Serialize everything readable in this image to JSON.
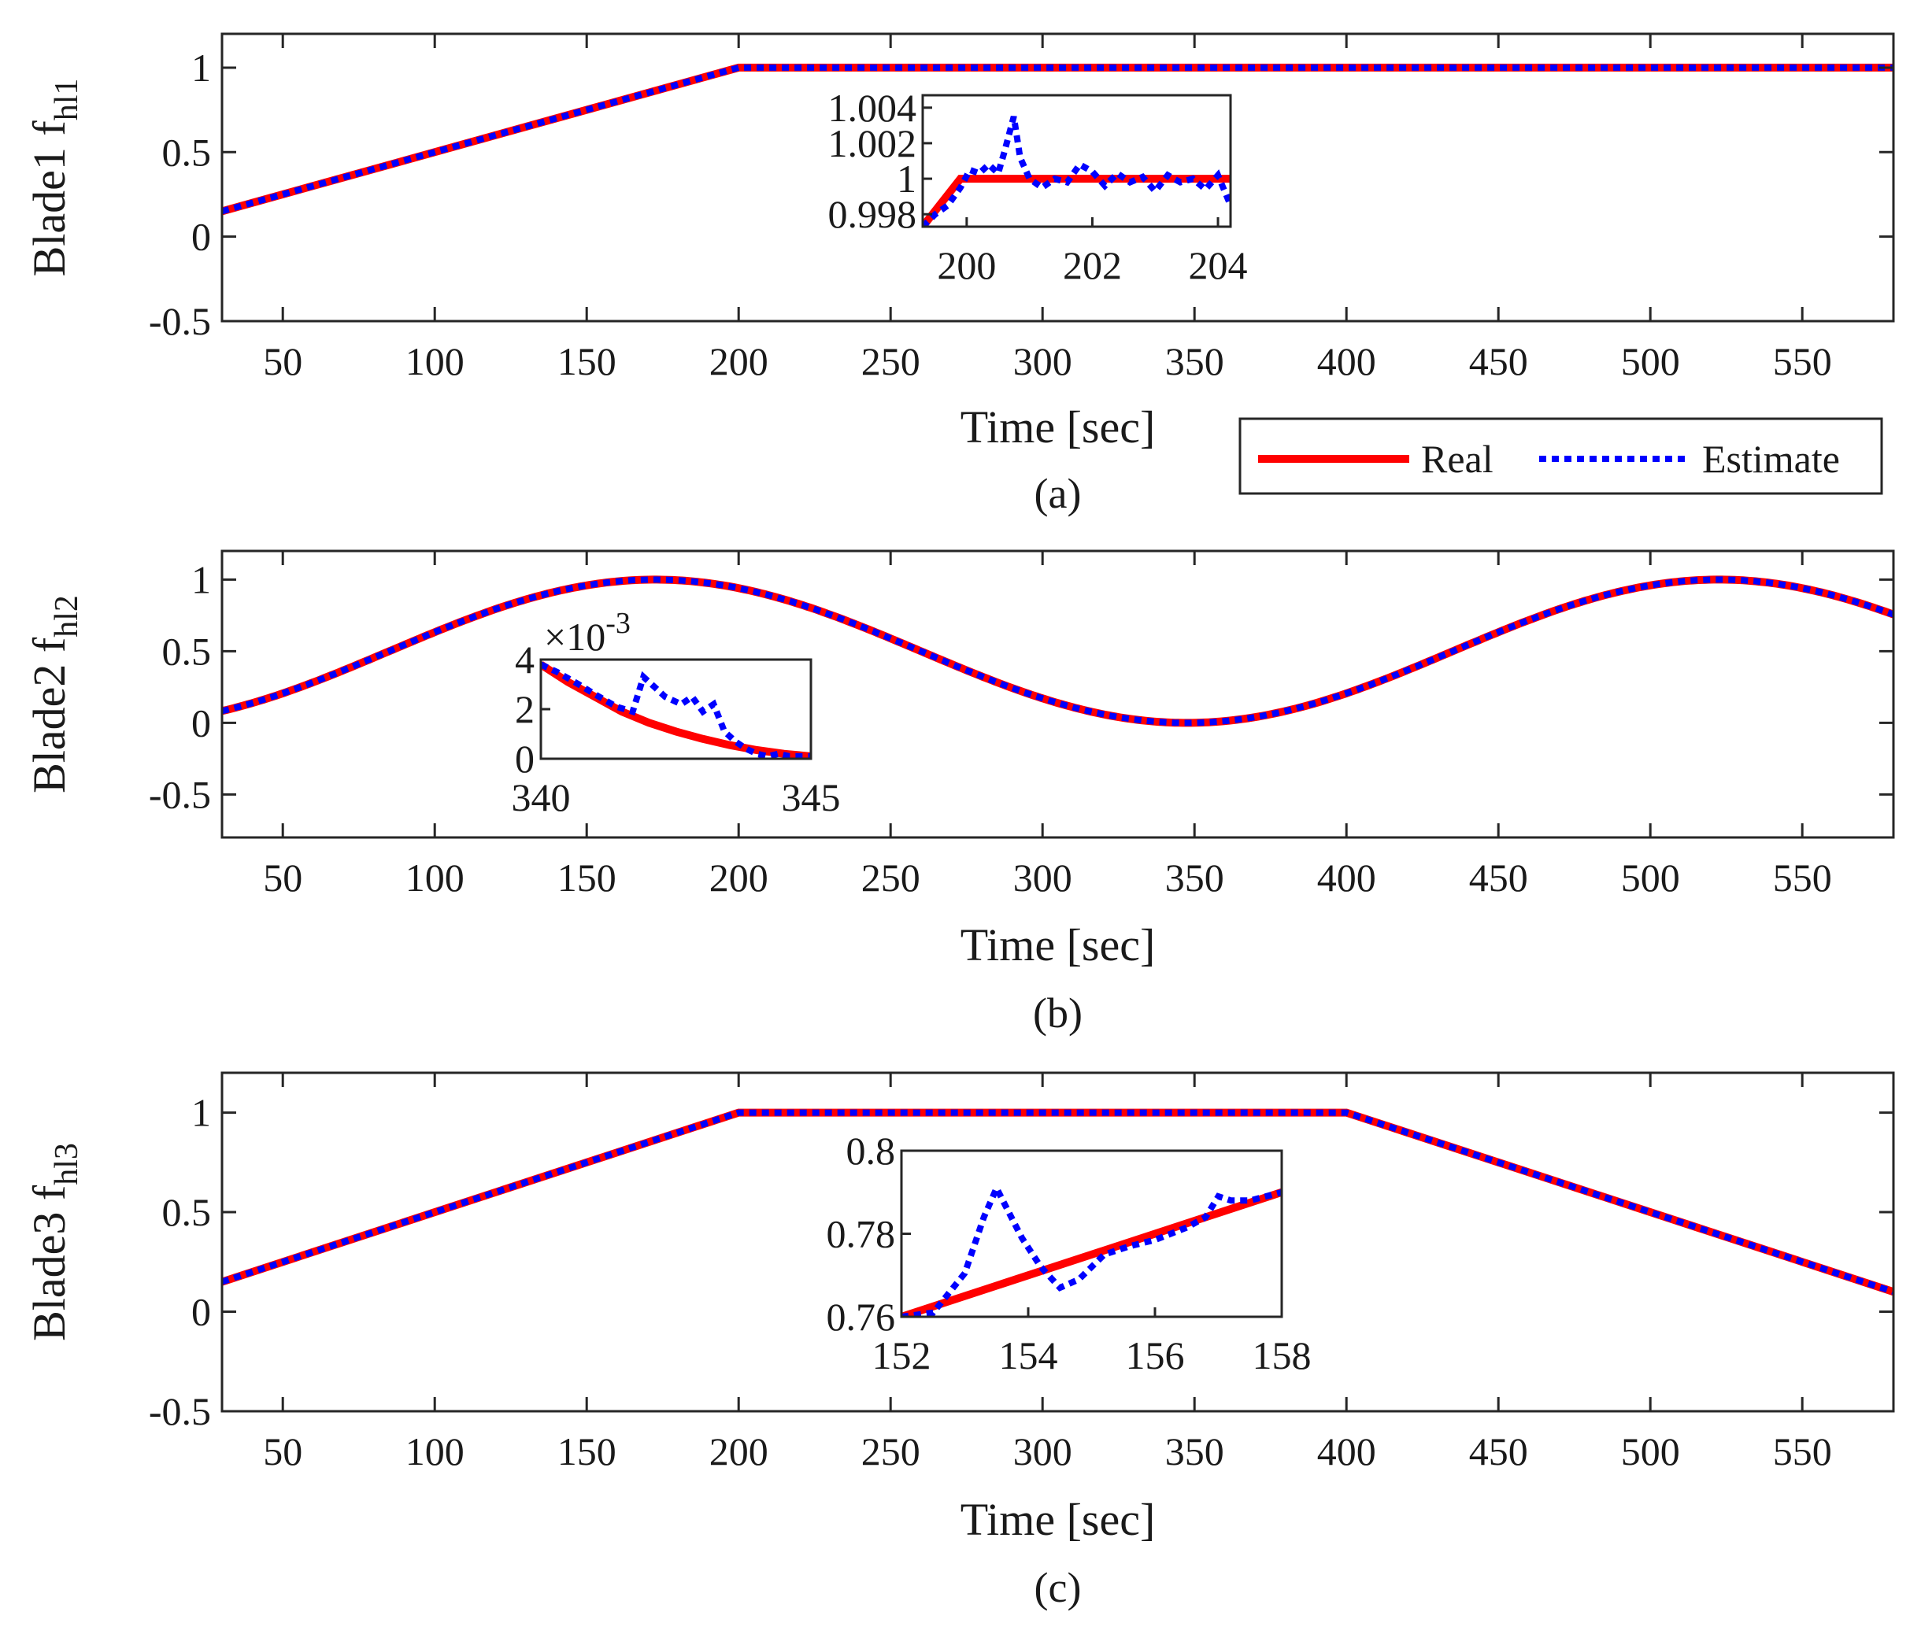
{
  "chart_data": [
    {
      "panel": "(a)",
      "type": "line",
      "ylabel": "Blade1 f",
      "ylabel_sub": "hl1",
      "xlabel": "Time [sec]",
      "caption": "(a)",
      "xlim": [
        30,
        580
      ],
      "ylim": [
        -0.5,
        1.2
      ],
      "xticks": [
        50,
        100,
        150,
        200,
        250,
        300,
        350,
        400,
        450,
        500,
        550
      ],
      "yticks": [
        -0.5,
        0,
        0.5,
        1
      ],
      "ytick_labels": [
        "-0.5",
        "0",
        "0.5",
        "1"
      ],
      "legend": {
        "entries": [
          "Real",
          "Estimate"
        ],
        "placement": "below-right",
        "colors": [
          "#ff0000",
          "#0000ff"
        ]
      },
      "series": [
        {
          "name": "Real",
          "color": "#ff0000",
          "style": "solid",
          "x": [
            30,
            200,
            580
          ],
          "y": [
            0.15,
            1.0,
            1.0
          ]
        },
        {
          "name": "Estimate",
          "color": "#0000ff",
          "style": "dotted",
          "x": [
            30,
            200,
            580
          ],
          "y": [
            0.15,
            1.0,
            1.0
          ]
        }
      ],
      "inset": {
        "xlim": [
          199.3,
          204.2
        ],
        "ylim": [
          0.9973,
          1.0047
        ],
        "xticks": [
          200,
          202,
          204
        ],
        "yticks": [
          0.998,
          1,
          1.002,
          1.004
        ],
        "ytick_labels": [
          "0.998",
          "1",
          "1.002",
          "1.004"
        ],
        "series": [
          {
            "name": "Real",
            "color": "#ff0000",
            "x": [
              199.3,
              199.9,
              204.2
            ],
            "y": [
              0.9973,
              1.0,
              1.0
            ]
          },
          {
            "name": "Estimate",
            "color": "#0000ff",
            "x": [
              199.3,
              199.5,
              199.7,
              199.9,
              200.05,
              200.2,
              200.35,
              200.5,
              200.6,
              200.75,
              200.85,
              201.0,
              201.2,
              201.4,
              201.6,
              201.8,
              202.0,
              202.2,
              202.4,
              202.6,
              202.8,
              203.0,
              203.2,
              203.4,
              203.6,
              203.8,
              204.0,
              204.2
            ],
            "y": [
              0.9973,
              0.998,
              0.9985,
              0.9995,
              1.0005,
              1.0003,
              1.0008,
              1.0003,
              1.0015,
              1.0035,
              1.0012,
              1.0,
              0.9995,
              1.0,
              0.9998,
              1.0008,
              1.0004,
              0.9996,
              1.0003,
              0.9998,
              1.0001,
              0.9993,
              1.0002,
              0.9998,
              1.0,
              0.9994,
              1.0002,
              0.9985
            ]
          }
        ]
      }
    },
    {
      "panel": "(b)",
      "type": "line",
      "ylabel": "Blade2 f",
      "ylabel_sub": "hl2",
      "xlabel": "Time [sec]",
      "caption": "(b)",
      "xlim": [
        30,
        580
      ],
      "ylim": [
        -0.8,
        1.2
      ],
      "xticks": [
        50,
        100,
        150,
        200,
        250,
        300,
        350,
        400,
        450,
        500,
        550
      ],
      "yticks": [
        -0.5,
        0,
        0.5,
        1
      ],
      "ytick_labels": [
        "-0.5",
        "0",
        "0.5",
        "1"
      ],
      "series": [
        {
          "name": "Real",
          "color": "#ff0000",
          "style": "solid",
          "function": "0.5 + 0.5*sin(2*pi*(t-85)/350)"
        },
        {
          "name": "Estimate",
          "color": "#0000ff",
          "style": "dotted",
          "function": "0.5 + 0.5*sin(2*pi*(t-85)/350)"
        }
      ],
      "inset": {
        "exponent_label": "×10",
        "exponent_power": "-3",
        "xlim": [
          340,
          345
        ],
        "ylim": [
          0,
          0.004
        ],
        "xticks": [
          340,
          345
        ],
        "yticks": [
          0,
          0.002,
          0.004
        ],
        "ytick_labels": [
          "0",
          "2",
          "4"
        ],
        "series": [
          {
            "name": "Real",
            "color": "#ff0000",
            "x": [
              340,
              340.5,
              341,
              341.5,
              342,
              342.5,
              343,
              343.5,
              344,
              344.5,
              345
            ],
            "y": [
              0.0038,
              0.0031,
              0.0025,
              0.0019,
              0.00145,
              0.0011,
              0.0008,
              0.00055,
              0.00035,
              0.0002,
              0.0001
            ]
          },
          {
            "name": "Estimate",
            "color": "#0000ff",
            "x": [
              340,
              340.3,
              340.7,
              341,
              341.4,
              341.7,
              341.9,
              342.1,
              342.3,
              342.6,
              342.8,
              343.0,
              343.2,
              343.4,
              343.6,
              343.8,
              344.0,
              344.2,
              344.4,
              344.6,
              344.8,
              345
            ],
            "y": [
              0.0038,
              0.0035,
              0.003,
              0.0026,
              0.0021,
              0.0019,
              0.0033,
              0.0029,
              0.0025,
              0.0022,
              0.0025,
              0.0019,
              0.0022,
              0.0011,
              0.0007,
              0.0004,
              0.0002,
              0.0001,
              0.0002,
              0.0001,
              0.0001,
              0.0001
            ]
          }
        ]
      }
    },
    {
      "panel": "(c)",
      "type": "line",
      "ylabel": "Blade3 f",
      "ylabel_sub": "hl3",
      "xlabel": "Time [sec]",
      "caption": "(c)",
      "xlim": [
        30,
        580
      ],
      "ylim": [
        -0.5,
        1.2
      ],
      "xticks": [
        50,
        100,
        150,
        200,
        250,
        300,
        350,
        400,
        450,
        500,
        550
      ],
      "yticks": [
        -0.5,
        0,
        0.5,
        1
      ],
      "ytick_labels": [
        "-0.5",
        "0",
        "0.5",
        "1"
      ],
      "series": [
        {
          "name": "Real",
          "color": "#ff0000",
          "style": "solid",
          "x": [
            30,
            200,
            400,
            580
          ],
          "y": [
            0.15,
            1.0,
            1.0,
            0.1
          ]
        },
        {
          "name": "Estimate",
          "color": "#0000ff",
          "style": "dotted",
          "x": [
            30,
            200,
            400,
            580
          ],
          "y": [
            0.15,
            1.0,
            1.0,
            0.1
          ]
        }
      ],
      "inset": {
        "xlim": [
          152,
          158
        ],
        "ylim": [
          0.76,
          0.8
        ],
        "xticks": [
          152,
          154,
          156,
          158
        ],
        "yticks": [
          0.76,
          0.78,
          0.8
        ],
        "ytick_labels": [
          "0.76",
          "0.78",
          "0.8"
        ],
        "series": [
          {
            "name": "Real",
            "color": "#ff0000",
            "x": [
              152,
              158
            ],
            "y": [
              0.76,
              0.79
            ]
          },
          {
            "name": "Estimate",
            "color": "#0000ff",
            "x": [
              152,
              152.5,
              153.0,
              153.3,
              153.5,
              153.7,
              153.9,
              154.2,
              154.5,
              154.8,
              155.2,
              155.6,
              156.0,
              156.5,
              156.8,
              157.0,
              157.2,
              157.5,
              158
            ],
            "y": [
              0.76,
              0.761,
              0.7705,
              0.784,
              0.791,
              0.785,
              0.779,
              0.772,
              0.767,
              0.769,
              0.775,
              0.777,
              0.7785,
              0.7815,
              0.784,
              0.789,
              0.788,
              0.788,
              0.79
            ]
          }
        ]
      }
    }
  ]
}
